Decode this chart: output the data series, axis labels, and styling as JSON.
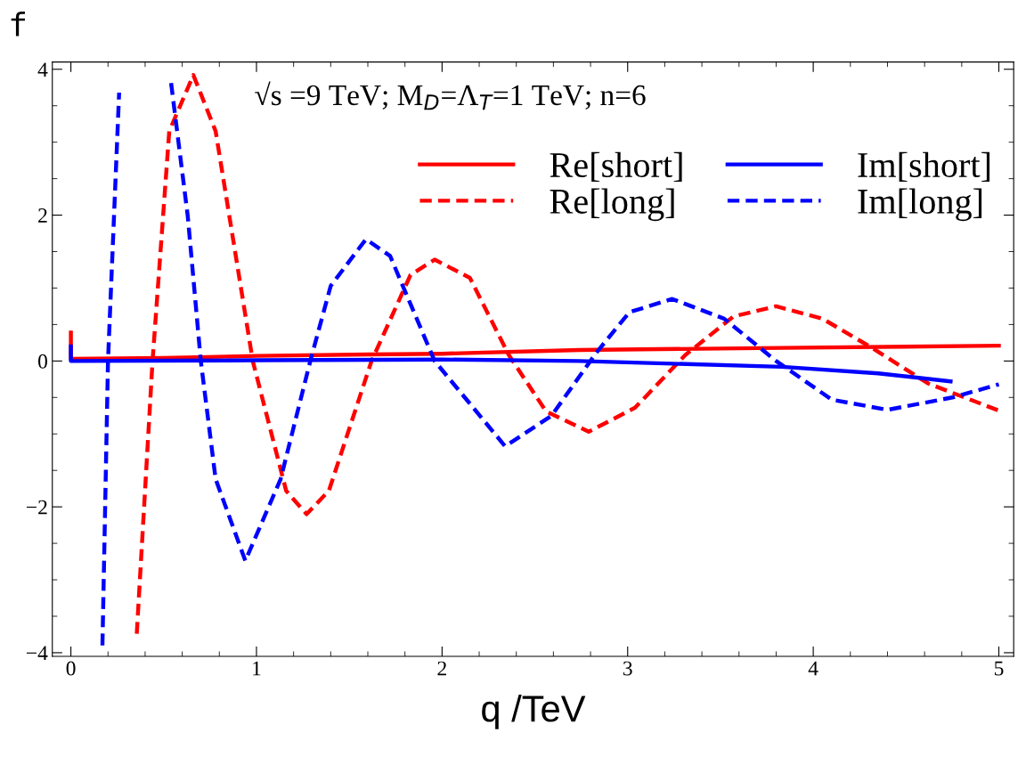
{
  "chart_data": {
    "type": "line",
    "title": "f",
    "xlabel": "q /TeV",
    "annotations": [
      "√s =9 TeV; M$_{D}$=Λ$_{T}$=1 TeV; n=6"
    ],
    "xlim": [
      -0.1,
      5.08
    ],
    "ylim": [
      -4.05,
      4.1
    ],
    "xticks": [
      0,
      1,
      2,
      3,
      4,
      5
    ],
    "yticks": [
      {
        "value": -4,
        "label": "−4"
      },
      {
        "value": -2,
        "label": "−2"
      },
      0,
      2,
      4
    ],
    "grid": false,
    "legend": "top right",
    "marker": "none",
    "series": [
      {
        "name": "Re[short]",
        "color": "#ff0000",
        "line_style": "solid",
        "x": [
          0,
          0,
          0.5,
          1.0,
          1.6,
          2.0,
          2.74,
          3.83,
          5.0
        ],
        "values": [
          0.39,
          0.03,
          0.04,
          0.07,
          0.09,
          0.1,
          0.15,
          0.18,
          0.21
        ]
      },
      {
        "name": "Re[long]",
        "color": "#ff0000",
        "line_style": "dashed",
        "x": [
          0.355,
          0.44,
          0.53,
          0.66,
          0.78,
          0.98,
          1.16,
          1.27,
          1.39,
          1.62,
          1.83,
          1.96,
          2.15,
          2.36,
          2.56,
          2.79,
          3.04,
          3.31,
          3.57,
          3.8,
          4.05,
          4.31,
          4.62,
          5.0
        ],
        "values": [
          -3.74,
          0,
          3.15,
          3.92,
          3.15,
          0,
          -1.78,
          -2.1,
          -1.78,
          0,
          1.18,
          1.39,
          1.14,
          0.08,
          -0.69,
          -0.97,
          -0.64,
          0.08,
          0.61,
          0.75,
          0.58,
          0.19,
          -0.31,
          -0.68
        ]
      },
      {
        "name": "Im[short]",
        "color": "#0000ff",
        "line_style": "solid",
        "x": [
          0,
          0,
          1.0,
          2.0,
          2.74,
          3.83,
          4.35,
          4.74
        ],
        "values": [
          0.2,
          0,
          0.01,
          0.02,
          0,
          -0.08,
          -0.17,
          -0.28
        ]
      },
      {
        "name": "Im[long]",
        "color": "#0000ff",
        "line_style": "dashed",
        "x": [
          0.17,
          0.2,
          0.26,
          0.4,
          0.54,
          0.63,
          0.7,
          0.78,
          0.94,
          1.13,
          1.29,
          1.4,
          1.59,
          1.72,
          1.96,
          2.34,
          2.59,
          2.83,
          3.01,
          3.24,
          3.52,
          3.8,
          4.1,
          4.4,
          4.75,
          5.0
        ],
        "values": [
          -3.9,
          0,
          3.68,
          null,
          3.81,
          1.98,
          0,
          -1.62,
          -2.74,
          -1.62,
          0,
          1.03,
          1.67,
          1.44,
          0,
          -1.17,
          -0.75,
          0.11,
          0.67,
          0.85,
          0.58,
          0,
          -0.53,
          -0.67,
          -0.5,
          -0.32
        ]
      }
    ]
  }
}
